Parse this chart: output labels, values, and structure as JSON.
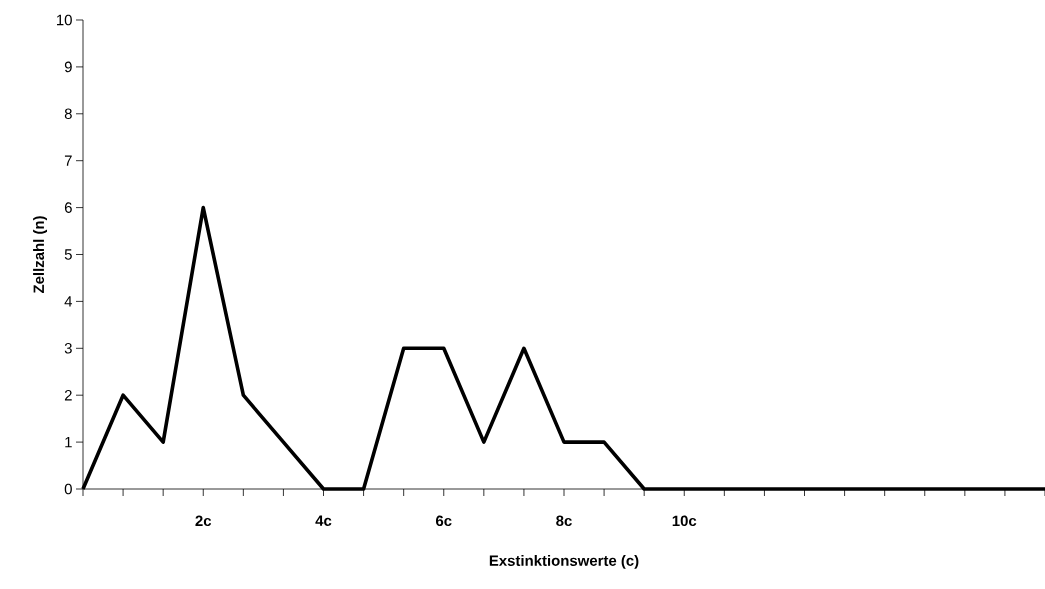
{
  "chart_data": {
    "type": "line",
    "xlabel": "Exstinktionswerte (c)",
    "ylabel": "Zellzahl (n)",
    "categories": [
      null,
      null,
      null,
      "2c",
      null,
      null,
      "4c",
      null,
      null,
      "6c",
      null,
      null,
      "8c",
      null,
      null,
      "10c",
      null,
      null,
      null,
      null,
      null,
      null,
      null,
      null,
      null
    ],
    "series": [
      {
        "color": "#000000",
        "values": [
          0,
          2,
          1,
          6,
          2,
          1,
          0,
          0,
          3,
          3,
          1,
          3,
          1,
          1,
          0,
          0,
          0,
          0,
          0,
          0,
          0,
          0,
          0,
          0,
          0
        ]
      }
    ],
    "ylim": [
      0,
      10
    ],
    "yticks": [
      0,
      1,
      2,
      3,
      4,
      5,
      6,
      7,
      8,
      9,
      10
    ],
    "line_style": "solid"
  }
}
